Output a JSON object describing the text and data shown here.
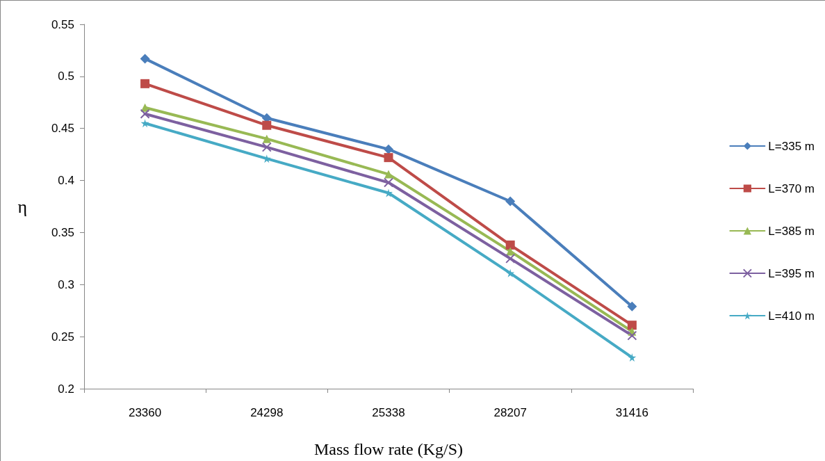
{
  "chart_data": {
    "type": "line",
    "xlabel": "Mass flow rate (Kg/S)",
    "ylabel": "η",
    "categories": [
      "23360",
      "24298",
      "25338",
      "28207",
      "31416"
    ],
    "ylim": [
      0.2,
      0.55
    ],
    "yticks": [
      0.2,
      0.25,
      0.3,
      0.35,
      0.4,
      0.45,
      0.5,
      0.55
    ],
    "grid": false,
    "legend": "right",
    "line_style": "solid",
    "series": [
      {
        "name": "L=335 m",
        "color": "#4a7ebb",
        "marker": "diamond",
        "values": [
          0.517,
          0.46,
          0.43,
          0.38,
          0.279
        ]
      },
      {
        "name": "L=370 m",
        "color": "#be4b48",
        "marker": "square",
        "values": [
          0.493,
          0.453,
          0.422,
          0.338,
          0.261
        ]
      },
      {
        "name": "L=385 m",
        "color": "#98b954",
        "marker": "triangle",
        "values": [
          0.47,
          0.44,
          0.406,
          0.332,
          0.255
        ]
      },
      {
        "name": "L=395 m",
        "color": "#7d60a0",
        "marker": "cross",
        "values": [
          0.464,
          0.432,
          0.398,
          0.325,
          0.251
        ]
      },
      {
        "name": "L=410 m",
        "color": "#46aac5",
        "marker": "star",
        "values": [
          0.455,
          0.421,
          0.388,
          0.311,
          0.23
        ]
      }
    ]
  }
}
